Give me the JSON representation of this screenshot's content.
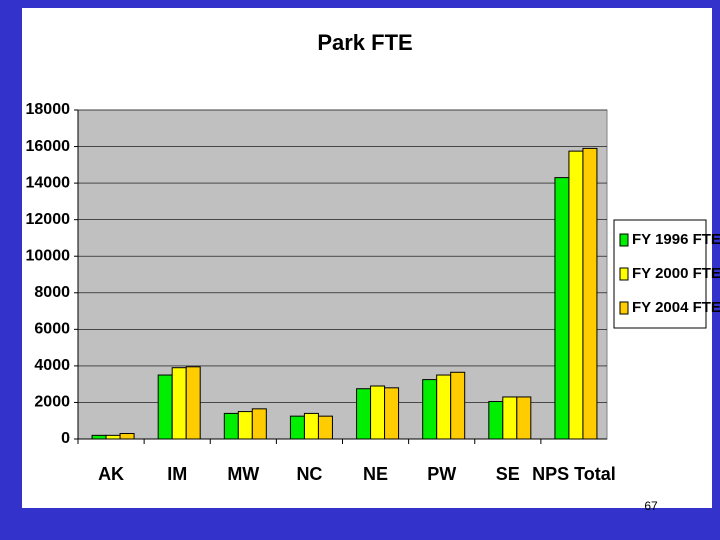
{
  "chart_data": {
    "type": "bar",
    "title": "Park FTE",
    "categories": [
      "AK",
      "IM",
      "MW",
      "NC",
      "NE",
      "PW",
      "SE",
      "NPS Total"
    ],
    "series": [
      {
        "name": "FY 1996 FTE",
        "color": "#00ee00",
        "values": [
          200,
          3500,
          1400,
          1250,
          2750,
          3250,
          2050,
          14300
        ]
      },
      {
        "name": "FY 2000 FTE",
        "color": "#ffff00",
        "values": [
          200,
          3900,
          1500,
          1400,
          2900,
          3500,
          2300,
          15750
        ]
      },
      {
        "name": "FY 2004 FTE",
        "color": "#ffcc00",
        "values": [
          300,
          3950,
          1650,
          1250,
          2800,
          3650,
          2300,
          15900
        ]
      }
    ],
    "ylim": [
      0,
      18000
    ],
    "yticks": [
      0,
      2000,
      4000,
      6000,
      8000,
      10000,
      12000,
      14000,
      16000,
      18000
    ],
    "grid": true,
    "legend": "right"
  },
  "page_number": "67"
}
